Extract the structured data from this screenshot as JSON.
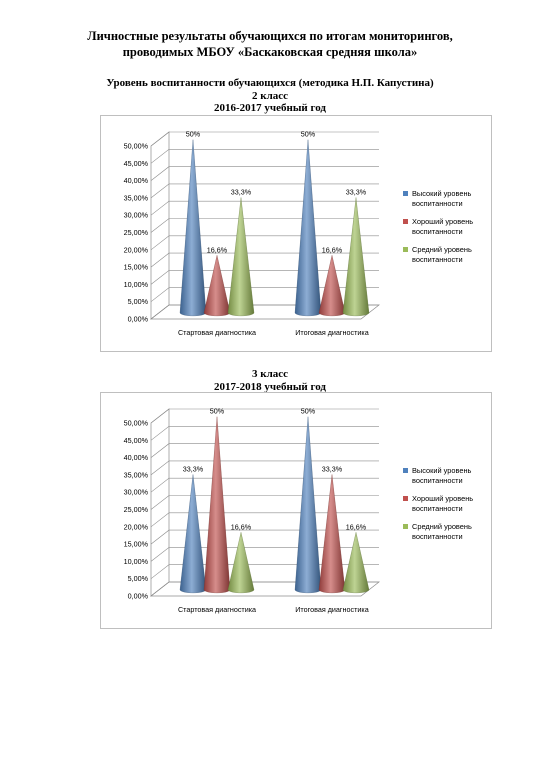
{
  "document": {
    "title_line1": "Личностные результаты обучающихся по итогам мониторингов,",
    "title_line2": "проводимых МБОУ «Баскаковская средняя школа»"
  },
  "section1": {
    "heading": "Уровень воспитанности обучающихся (методика Н.П. Капустина)",
    "grade": "2 класс",
    "year": "2016-2017 учебный год"
  },
  "section2": {
    "grade": "3 класс",
    "year": "2017-2018 учебный год"
  },
  "colors": {
    "series1": "#4F81BD",
    "series2": "#C0504D",
    "series3": "#9BBB59"
  },
  "chart_data": [
    {
      "type": "bar",
      "bar_style": "3d-cone",
      "categories": [
        "Стартовая диагностика",
        "Итоговая диагностика"
      ],
      "series": [
        {
          "name": "Высокий уровень воспитанности",
          "values": [
            50,
            50
          ],
          "labels": [
            "50%",
            "50%"
          ]
        },
        {
          "name": "Хороший уровень воспитанности",
          "values": [
            16.6,
            16.6
          ],
          "labels": [
            "16,6%",
            "16,6%"
          ]
        },
        {
          "name": "Средний уровень воспитанности",
          "values": [
            33.3,
            33.3
          ],
          "labels": [
            "33,3%",
            "33,3%"
          ]
        }
      ],
      "yticks": [
        "0,00%",
        "5,00%",
        "10,00%",
        "15,00%",
        "20,00%",
        "25,00%",
        "30,00%",
        "35,00%",
        "40,00%",
        "45,00%",
        "50,00%"
      ],
      "ylim": [
        0,
        50
      ],
      "grid": true,
      "legend": "right"
    },
    {
      "type": "bar",
      "bar_style": "3d-cone",
      "categories": [
        "Стартовая диагностика",
        "Итоговая диагностика"
      ],
      "series": [
        {
          "name": "Высокий уровень воспитанности",
          "values": [
            33.3,
            50
          ],
          "labels": [
            "33,3%",
            "50%"
          ]
        },
        {
          "name": "Хороший уровень воспитанности",
          "values": [
            50,
            33.3
          ],
          "labels": [
            "50%",
            "33,3%"
          ]
        },
        {
          "name": "Средний уровень воспитанности",
          "values": [
            16.6,
            16.6
          ],
          "labels": [
            "16,6%",
            "16,6%"
          ]
        }
      ],
      "yticks": [
        "0,00%",
        "5,00%",
        "10,00%",
        "15,00%",
        "20,00%",
        "25,00%",
        "30,00%",
        "35,00%",
        "40,00%",
        "45,00%",
        "50,00%"
      ],
      "ylim": [
        0,
        50
      ],
      "grid": true,
      "legend": "right"
    }
  ]
}
